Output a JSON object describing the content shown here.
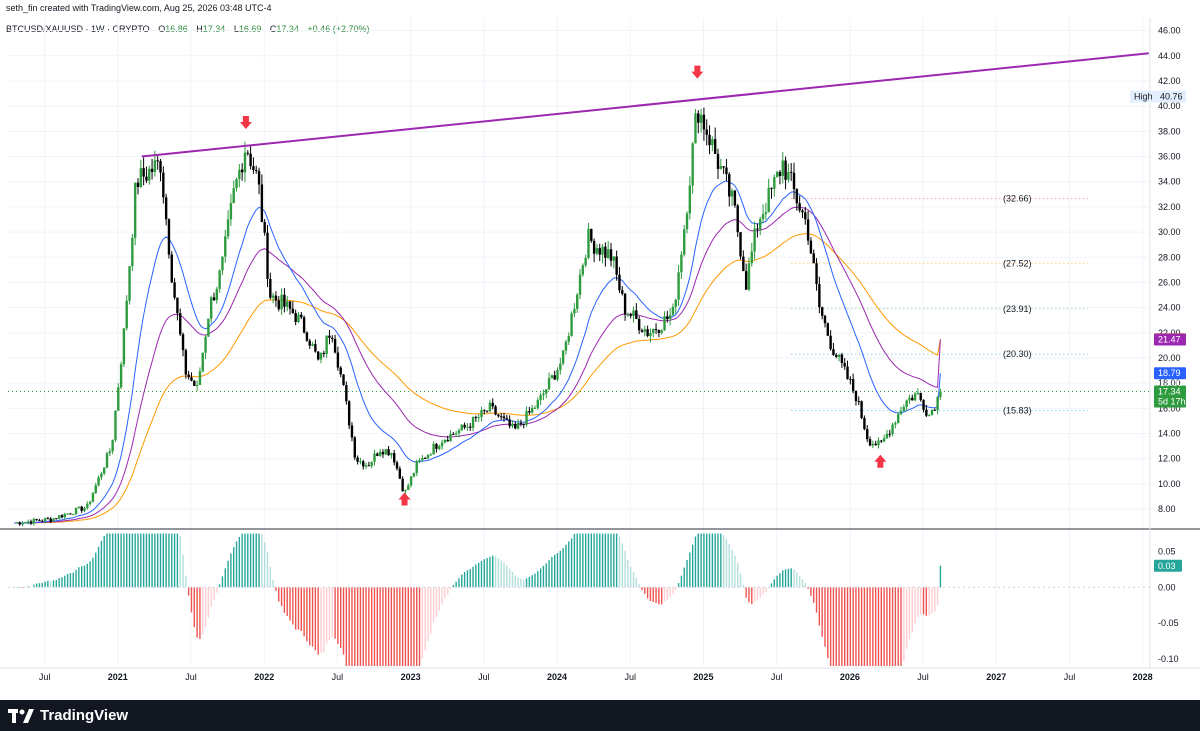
{
  "attribution": "seth_fin created with TradingView.com, Aug 25, 2026 03:48 UTC-4",
  "legend": {
    "symbol": "BTCUSD/XAUUSD · 1W · CRYPTO",
    "open_label": "O",
    "open": "16.86",
    "high_label": "H",
    "high": "17.34",
    "low_label": "L",
    "low": "16.69",
    "close_label": "C",
    "close": "17.34",
    "change": "+0.46 (+2.70%)"
  },
  "footer": {
    "logo_text": "TradingView"
  },
  "colors": {
    "up": "#26a69a",
    "down": "#000000",
    "candle_up": "#2e9b3e",
    "trendline": "#9c27b0",
    "ma_fast": "#2962ff",
    "ma_mid": "#9c27b0",
    "ma_slow": "#ff9800",
    "arrow": "#f23645",
    "hist_pos_strong": "#26a69a",
    "hist_pos_weak": "#b2dfdb",
    "hist_neg_strong": "#ef5350",
    "hist_neg_weak": "#ffcdd2"
  },
  "price_axis": {
    "ticks": [
      "46.00",
      "44.00",
      "42.00",
      "40.00",
      "38.00",
      "36.00",
      "34.00",
      "32.00",
      "30.00",
      "28.00",
      "26.00",
      "24.00",
      "22.00",
      "20.00",
      "18.00",
      "16.00",
      "14.00",
      "12.00",
      "10.00",
      "8.00"
    ],
    "high_label": "High",
    "high_value": "40.76",
    "tags": [
      {
        "text": "21.49",
        "color": "#ff9800",
        "value": 21.49
      },
      {
        "text": "21.47",
        "color": "#9c27b0",
        "value": 21.47
      },
      {
        "text": "18.79",
        "color": "#2962ff",
        "value": 18.79
      },
      {
        "text": "17.34",
        "color": "#2e9b3e",
        "value": 17.34
      },
      {
        "text": "5d 17h",
        "color": "#2e9b3e",
        "value": 16.55
      }
    ],
    "hidden_tag": "18.00"
  },
  "levels": [
    {
      "label": "(32.66)",
      "value": 32.66,
      "color": "#f77c80"
    },
    {
      "label": "(27.52)",
      "value": 27.52,
      "color": "#ffb74d"
    },
    {
      "label": "(23.91)",
      "value": 23.91,
      "color": "#81c784"
    },
    {
      "label": "(20.30)",
      "value": 20.3,
      "color": "#64b5f6"
    },
    {
      "label": "(15.83)",
      "value": 15.83,
      "color": "#4dd0e1"
    }
  ],
  "indicator_axis": {
    "ticks": [
      "0.05",
      "0.00",
      "-0.05",
      "-0.10"
    ],
    "tag": {
      "text": "0.03",
      "color": "#26a69a",
      "value": 0.03
    }
  },
  "time_axis": {
    "labels": [
      "Jul",
      "2021",
      "Jul",
      "2022",
      "Jul",
      "2023",
      "Jul",
      "2024",
      "Jul",
      "2025",
      "Jul",
      "2026",
      "Jul",
      "2027",
      "Jul",
      "2028"
    ],
    "bold": [
      false,
      true,
      false,
      true,
      false,
      true,
      false,
      true,
      false,
      true,
      false,
      true,
      false,
      true,
      false,
      true
    ]
  },
  "chart_data": {
    "type": "candlestick",
    "interval": "1W",
    "y_range": [
      6.5,
      47
    ],
    "trendline": [
      [
        "2020-12",
        "36.0"
      ],
      [
        "2028-01",
        "44.2"
      ]
    ],
    "markers": [
      {
        "type": "arrow-down",
        "date": "2021-11",
        "price": 38.5
      },
      {
        "type": "arrow-down",
        "date": "2024-12",
        "price": 42.5
      },
      {
        "type": "arrow-up",
        "date": "2022-12",
        "price": 9.0
      },
      {
        "type": "arrow-up",
        "date": "2026-03",
        "price": 12.0
      }
    ],
    "price_path": [
      [
        "2020-04",
        6.9
      ],
      [
        "2020-07",
        7.2
      ],
      [
        "2020-10",
        8.2
      ],
      [
        "2020-12",
        13.0
      ],
      [
        "2021-01",
        22.0
      ],
      [
        "2021-02",
        34.0
      ],
      [
        "2021-04",
        35.5
      ],
      [
        "2021-05",
        26.0
      ],
      [
        "2021-06",
        19.0
      ],
      [
        "2021-07",
        17.5
      ],
      [
        "2021-08",
        24.0
      ],
      [
        "2021-09",
        27.0
      ],
      [
        "2021-10",
        33.0
      ],
      [
        "2021-11",
        37.0
      ],
      [
        "2021-12",
        34.0
      ],
      [
        "2022-01",
        25.0
      ],
      [
        "2022-03",
        23.5
      ],
      [
        "2022-04",
        22.0
      ],
      [
        "2022-05",
        19.5
      ],
      [
        "2022-06",
        22.5
      ],
      [
        "2022-07",
        17.5
      ],
      [
        "2022-08",
        12.0
      ],
      [
        "2022-09",
        11.5
      ],
      [
        "2022-10",
        12.8
      ],
      [
        "2022-11",
        12.5
      ],
      [
        "2022-12",
        9.2
      ],
      [
        "2023-01",
        11.5
      ],
      [
        "2023-03",
        13.5
      ],
      [
        "2023-05",
        14.5
      ],
      [
        "2023-07",
        16.0
      ],
      [
        "2023-09",
        14.2
      ],
      [
        "2023-11",
        16.5
      ],
      [
        "2024-01",
        20.0
      ],
      [
        "2024-03",
        29.5
      ],
      [
        "2024-05",
        28.0
      ],
      [
        "2024-06",
        24.0
      ],
      [
        "2024-08",
        22.0
      ],
      [
        "2024-10",
        23.5
      ],
      [
        "2024-11",
        31.0
      ],
      [
        "2024-12",
        40.0
      ],
      [
        "2025-01",
        37.5
      ],
      [
        "2025-03",
        32.0
      ],
      [
        "2025-04",
        26.0
      ],
      [
        "2025-05",
        31.0
      ],
      [
        "2025-06",
        33.0
      ],
      [
        "2025-07",
        35.5
      ],
      [
        "2025-09",
        30.5
      ],
      [
        "2025-10",
        24.0
      ],
      [
        "2025-11",
        21.0
      ],
      [
        "2025-12",
        19.0
      ],
      [
        "2026-01",
        17.0
      ],
      [
        "2026-02",
        13.5
      ],
      [
        "2026-03",
        13.0
      ],
      [
        "2026-05",
        16.5
      ],
      [
        "2026-06",
        17.2
      ],
      [
        "2026-07",
        15.5
      ],
      [
        "2026-08",
        17.34
      ]
    ],
    "moving_averages": [
      {
        "name": "ma-fast",
        "color": "#2962ff",
        "last": 18.79
      },
      {
        "name": "ma-mid",
        "color": "#9c27b0",
        "last": 21.47
      },
      {
        "name": "ma-slow",
        "color": "#ff9800",
        "last": 21.49
      }
    ],
    "oscillator": {
      "type": "histogram",
      "last": 0.03,
      "y_range": [
        -0.11,
        0.08
      ]
    }
  }
}
